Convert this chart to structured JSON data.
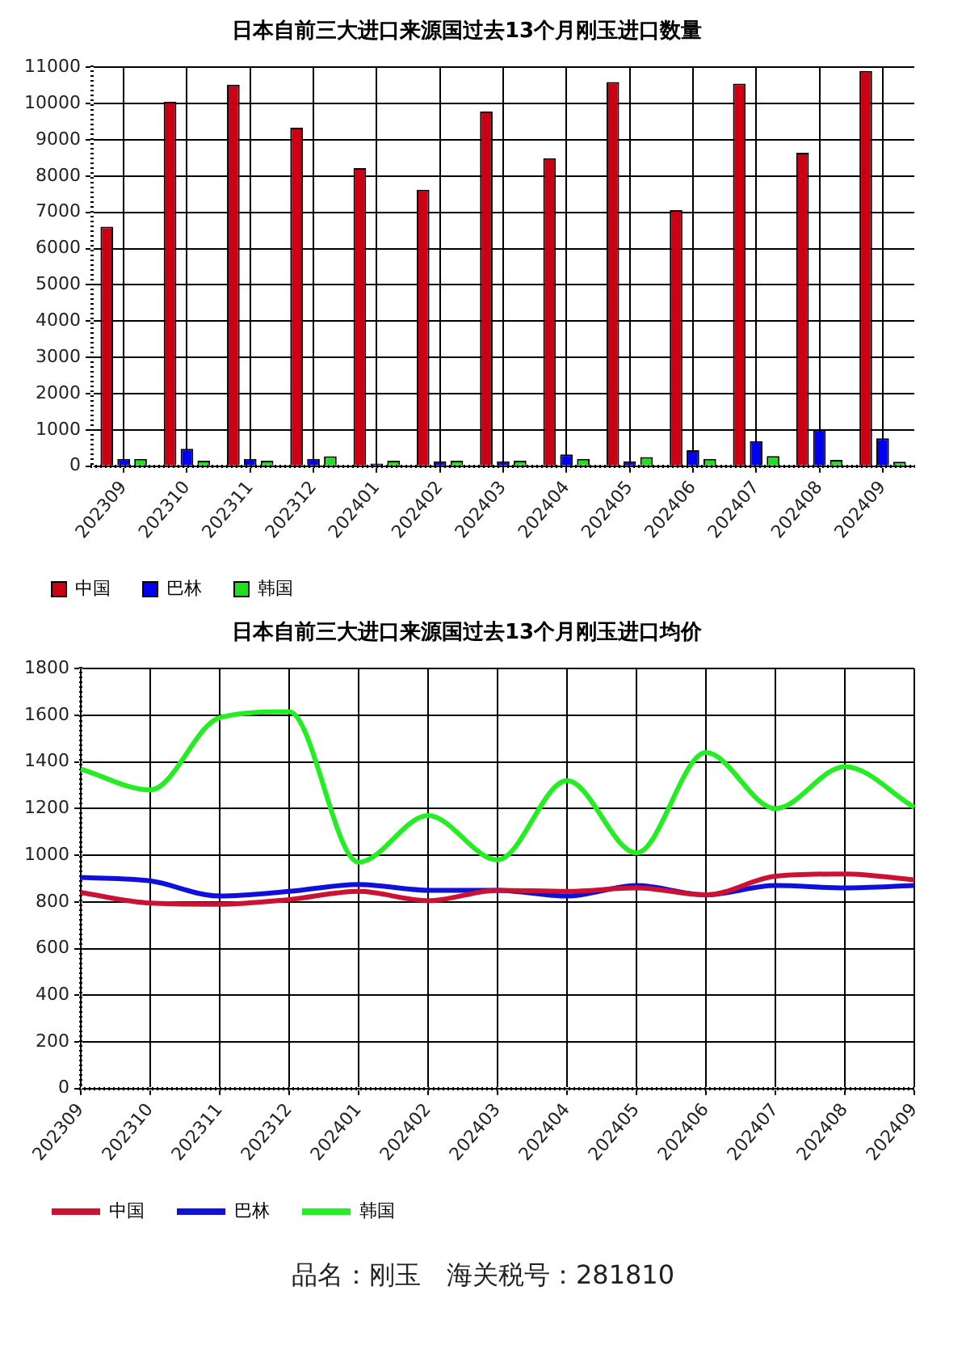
{
  "chart_data": [
    {
      "type": "bar",
      "title": "日本自前三大进口来源国过去13个月刚玉进口数量",
      "categories": [
        "202309",
        "202310",
        "202311",
        "202312",
        "202401",
        "202402",
        "202403",
        "202404",
        "202405",
        "202406",
        "202407",
        "202408",
        "202409"
      ],
      "series": [
        {
          "name": "中国",
          "color": "#cc0014",
          "values": [
            6600,
            10050,
            10520,
            9330,
            8220,
            7620,
            9780,
            8490,
            10590,
            7060,
            10550,
            8640,
            10900
          ]
        },
        {
          "name": "巴林",
          "color": "#0000ee",
          "values": [
            200,
            480,
            200,
            200,
            70,
            130,
            130,
            320,
            130,
            440,
            690,
            1000,
            770
          ]
        },
        {
          "name": "韩国",
          "color": "#22dd22",
          "values": [
            200,
            150,
            150,
            270,
            150,
            150,
            150,
            200,
            250,
            200,
            280,
            170,
            120
          ]
        }
      ],
      "ylim": [
        0,
        11000
      ],
      "yticks": [
        0,
        1000,
        2000,
        3000,
        4000,
        5000,
        6000,
        7000,
        8000,
        9000,
        10000,
        11000
      ],
      "grid": true,
      "legend": "bottom left"
    },
    {
      "type": "line",
      "title": "日本自前三大进口来源国过去13个月刚玉进口均价",
      "categories": [
        "202309",
        "202310",
        "202311",
        "202312",
        "202401",
        "202402",
        "202403",
        "202404",
        "202405",
        "202406",
        "202407",
        "202408",
        "202409"
      ],
      "series": [
        {
          "name": "中国",
          "color": "#cc1133",
          "values": [
            840,
            795,
            790,
            810,
            845,
            805,
            850,
            845,
            860,
            830,
            910,
            920,
            895
          ]
        },
        {
          "name": "巴林",
          "color": "#1010dd",
          "values": [
            905,
            890,
            825,
            845,
            875,
            850,
            850,
            825,
            870,
            830,
            870,
            860,
            870
          ]
        },
        {
          "name": "韩国",
          "color": "#22ee22",
          "values": [
            1370,
            1280,
            1590,
            1615,
            970,
            1170,
            980,
            1320,
            1010,
            1440,
            1200,
            1380,
            1205
          ]
        }
      ],
      "ylim": [
        0,
        1800
      ],
      "yticks": [
        0,
        200,
        400,
        600,
        800,
        1000,
        1200,
        1400,
        1600,
        1800
      ],
      "grid": true,
      "legend": "bottom left",
      "marker": "none",
      "annotations": [
        "品名：刚玉　海关税号：281810"
      ]
    }
  ]
}
